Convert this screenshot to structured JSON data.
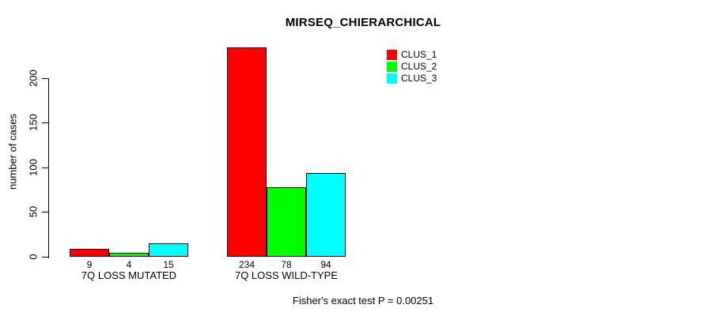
{
  "title": "MIRSEQ_CHIERARCHICAL",
  "footer": "Fisher's exact test P = 0.00251",
  "colors": {
    "clus_1": "#FF0000",
    "clus_2": "#00FF00",
    "clus_3": "#00FFFF",
    "axis": "#000000",
    "background": "#FFFFFF",
    "bar_border": "#000000"
  },
  "chart_data": {
    "type": "bar",
    "grouped": true,
    "title": "MIRSEQ_CHIERARCHICAL",
    "xlabel": "",
    "ylabel": "number of cases",
    "categories": [
      "7Q LOSS MUTATED",
      "7Q LOSS WILD-TYPE"
    ],
    "series": [
      {
        "name": "CLUS_1",
        "color": "#FF0000",
        "values": [
          9,
          234
        ]
      },
      {
        "name": "CLUS_2",
        "color": "#00FF00",
        "values": [
          4,
          78
        ]
      },
      {
        "name": "CLUS_3",
        "color": "#00FFFF",
        "values": [
          15,
          94
        ]
      }
    ],
    "bar_value_labels": [
      [
        9,
        4,
        15
      ],
      [
        234,
        78,
        94
      ]
    ],
    "yticks": [
      0,
      50,
      100,
      150,
      200
    ],
    "ylim": [
      0,
      240
    ],
    "grid": false,
    "legend_position": "top-right",
    "annotation": "Fisher's exact test P = 0.00251"
  }
}
